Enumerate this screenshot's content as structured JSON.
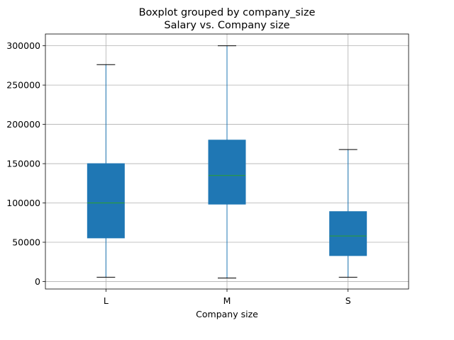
{
  "chart_data": {
    "type": "boxplot",
    "title": "Boxplot grouped by company_size",
    "subtitle": "Salary vs. Company size",
    "xlabel": "Company size",
    "ylabel": "",
    "categories": [
      "L",
      "M",
      "S"
    ],
    "boxes": [
      {
        "category": "L",
        "whisker_low": 5500,
        "q1": 55500,
        "median": 100000,
        "q3": 150000,
        "whisker_high": 276000
      },
      {
        "category": "M",
        "whisker_low": 4500,
        "q1": 98500,
        "median": 135000,
        "q3": 180000,
        "whisker_high": 300000
      },
      {
        "category": "S",
        "whisker_low": 5500,
        "q1": 33000,
        "median": 58000,
        "q3": 89000,
        "whisker_high": 168000
      }
    ],
    "yticks": [
      0,
      50000,
      100000,
      150000,
      200000,
      250000,
      300000
    ],
    "ytick_labels": [
      "0",
      "50000",
      "100000",
      "150000",
      "200000",
      "250000",
      "300000"
    ],
    "ylim": [
      -9500,
      315000
    ],
    "grid": true,
    "colors": {
      "box_fill": "#1f77b4",
      "whisker": "#1f77b4",
      "cap": "#000000",
      "median": "#2ca02c",
      "grid": "#b0b0b0"
    }
  }
}
